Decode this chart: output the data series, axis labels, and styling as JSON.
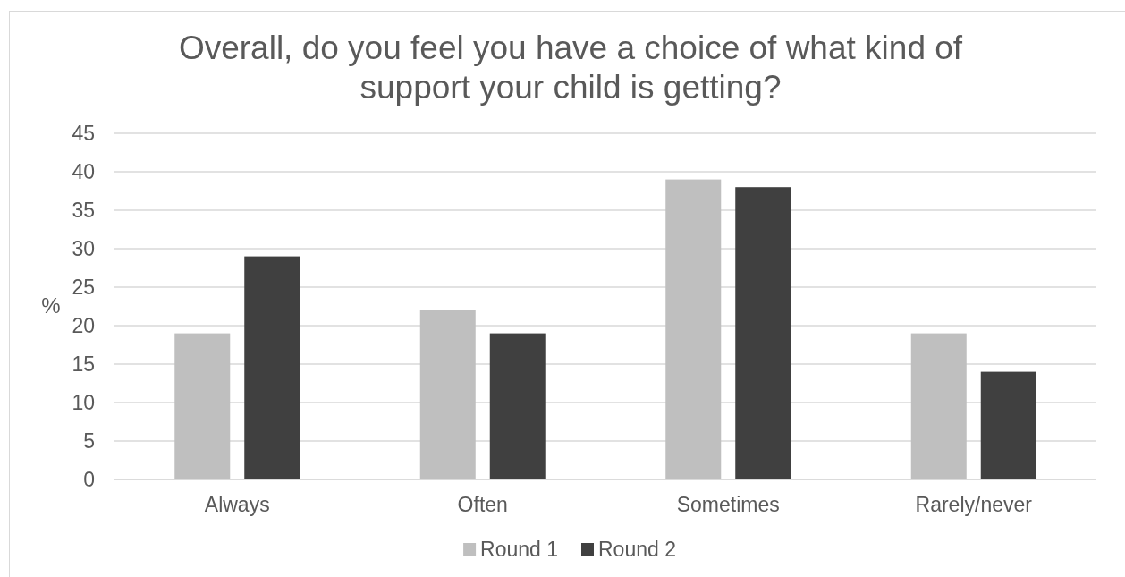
{
  "chart_data": {
    "type": "bar",
    "title": "Overall, do you feel you have a choice of what kind of\nsupport your child is getting?",
    "ylabel": "%",
    "categories": [
      "Always",
      "Often",
      "Sometimes",
      "Rarely/never"
    ],
    "series": [
      {
        "name": "Round 1",
        "color": "#bfbfbf",
        "values": [
          19,
          22,
          39,
          19
        ]
      },
      {
        "name": "Round 2",
        "color": "#404040",
        "values": [
          29,
          19,
          38,
          14
        ]
      }
    ],
    "ylim": [
      0,
      45
    ],
    "yticks": [
      0,
      5,
      10,
      15,
      20,
      25,
      30,
      35,
      40,
      45
    ],
    "grid": "y",
    "legend": "bottom"
  }
}
